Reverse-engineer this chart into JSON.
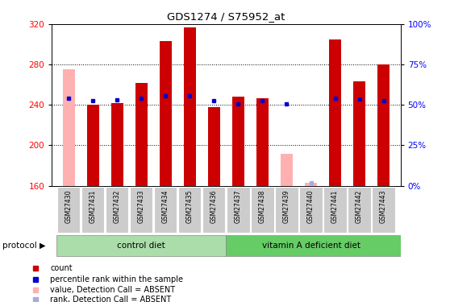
{
  "title": "GDS1274 / S75952_at",
  "samples": [
    "GSM27430",
    "GSM27431",
    "GSM27432",
    "GSM27433",
    "GSM27434",
    "GSM27435",
    "GSM27436",
    "GSM27437",
    "GSM27438",
    "GSM27439",
    "GSM27440",
    "GSM27441",
    "GSM27442",
    "GSM27443"
  ],
  "ylim": [
    160,
    320
  ],
  "yticks": [
    160,
    200,
    240,
    280,
    320
  ],
  "right_ytick_vals": [
    160,
    200,
    240,
    280,
    320
  ],
  "right_ytick_labels": [
    "0%",
    "25%",
    "50%",
    "75%",
    "100%"
  ],
  "absent_value": [
    1,
    0,
    0,
    0,
    0,
    0,
    0,
    0,
    0,
    1,
    1,
    0,
    0,
    0
  ],
  "bar_values": [
    275,
    240,
    242,
    262,
    303,
    317,
    238,
    248,
    247,
    192,
    163,
    305,
    263,
    280
  ],
  "bar_color": "#cc0000",
  "absent_bar_color": "#ffb0b0",
  "rank_values": [
    247,
    244,
    245,
    247,
    249,
    249,
    244,
    241,
    244,
    241,
    163,
    247,
    246,
    244
  ],
  "rank_absent": [
    0,
    0,
    0,
    0,
    0,
    0,
    0,
    0,
    0,
    0,
    1,
    0,
    0,
    0
  ],
  "rank_color": "#0000cc",
  "rank_absent_color": "#aaaadd",
  "control_label": "control diet",
  "vitA_label": "vitamin A deficient diet",
  "protocol_label": "protocol",
  "legend_items": [
    "count",
    "percentile rank within the sample",
    "value, Detection Call = ABSENT",
    "rank, Detection Call = ABSENT"
  ],
  "legend_colors": [
    "#cc0000",
    "#0000cc",
    "#ffb0b0",
    "#aaaadd"
  ],
  "bg_color": "#ffffff",
  "group_bg_control": "#aaddaa",
  "group_bg_vitA": "#66cc66",
  "tick_bg": "#cccccc",
  "bar_width": 0.5
}
